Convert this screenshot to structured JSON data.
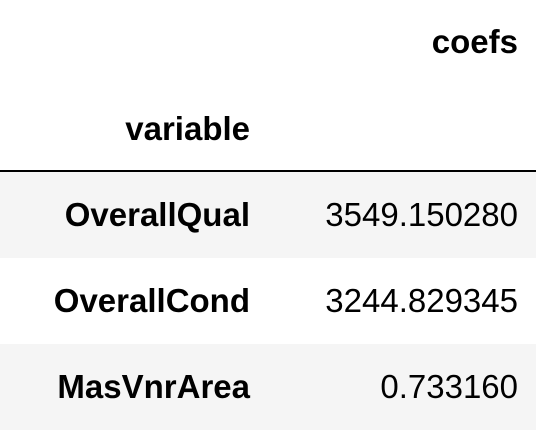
{
  "table": {
    "column_header": "coefs",
    "index_name": "variable",
    "rows": [
      {
        "variable": "OverallQual",
        "coefs": "3549.150280"
      },
      {
        "variable": "OverallCond",
        "coefs": "3244.829345"
      },
      {
        "variable": "MasVnrArea",
        "coefs": "0.733160"
      }
    ]
  },
  "colors": {
    "stripe": "#f5f5f5",
    "background": "#ffffff",
    "rule": "#000000"
  }
}
